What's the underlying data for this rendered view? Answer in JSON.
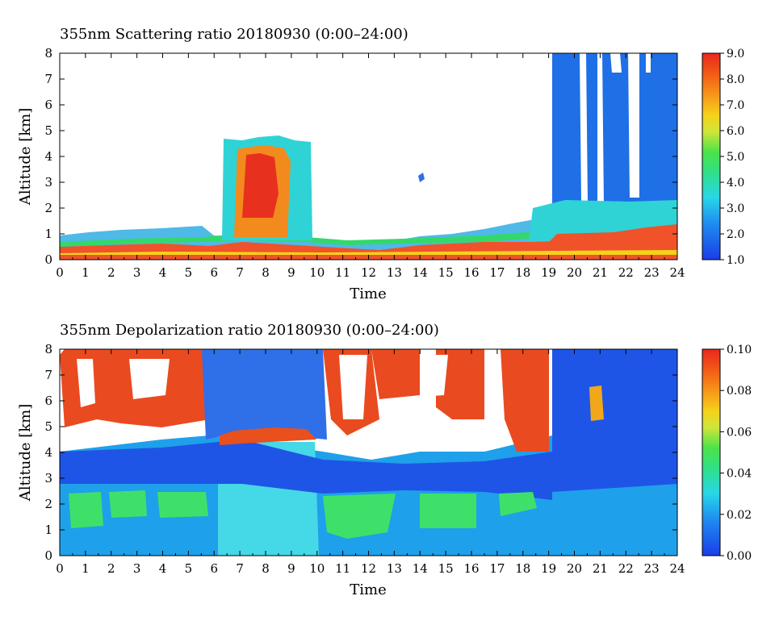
{
  "chart_data": [
    {
      "type": "heatmap",
      "title": "355nm Scattering ratio  20180930 (0:00–24:00)",
      "xlabel": "Time",
      "ylabel": "Altitude [km]",
      "x_ticks": [
        "0",
        "1",
        "2",
        "3",
        "4",
        "5",
        "6",
        "7",
        "8",
        "9",
        "10",
        "11",
        "12",
        "13",
        "14",
        "15",
        "16",
        "17",
        "18",
        "19",
        "20",
        "21",
        "22",
        "23",
        "24"
      ],
      "y_ticks": [
        "0",
        "1",
        "2",
        "3",
        "4",
        "5",
        "6",
        "7",
        "8"
      ],
      "xlim": [
        0,
        24
      ],
      "ylim": [
        0,
        8
      ],
      "colorbar": {
        "min": 1.0,
        "max": 9.0,
        "tick_labels": [
          "1.0",
          "2.0",
          "3.0",
          "4.0",
          "5.0",
          "6.0",
          "7.0",
          "8.0",
          "9.0"
        ]
      }
    },
    {
      "type": "heatmap",
      "title": "355nm Depolarization ratio  20180930 (0:00–24:00)",
      "xlabel": "Time",
      "ylabel": "Altitude [km]",
      "x_ticks": [
        "0",
        "1",
        "2",
        "3",
        "4",
        "5",
        "6",
        "7",
        "8",
        "9",
        "10",
        "11",
        "12",
        "13",
        "14",
        "15",
        "16",
        "17",
        "18",
        "19",
        "20",
        "21",
        "22",
        "23",
        "24"
      ],
      "y_ticks": [
        "0",
        "1",
        "2",
        "3",
        "4",
        "5",
        "6",
        "7",
        "8"
      ],
      "xlim": [
        0,
        24
      ],
      "ylim": [
        0,
        8
      ],
      "colorbar": {
        "min": 0.0,
        "max": 0.1,
        "tick_labels": [
          "0.00",
          "0.02",
          "0.04",
          "0.06",
          "0.08",
          "0.10"
        ]
      }
    }
  ]
}
